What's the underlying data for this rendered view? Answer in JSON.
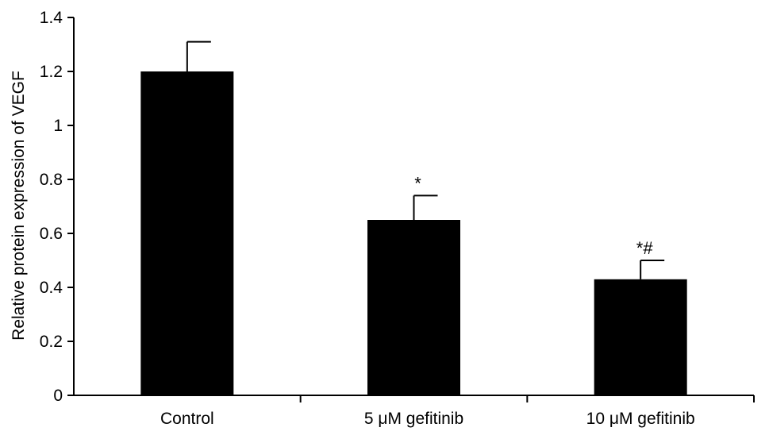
{
  "chart_data": {
    "type": "bar",
    "title": "",
    "xlabel": "",
    "ylabel": "Relative protein expression of VEGF",
    "categories": [
      "Control",
      "5 μM gefitinib",
      "10 μM gefitinib"
    ],
    "values": [
      1.2,
      0.65,
      0.43
    ],
    "error_upper": [
      0.11,
      0.09,
      0.07
    ],
    "annotations": [
      "",
      "*",
      "*#"
    ],
    "ylim": [
      0,
      1.4
    ],
    "yticks": [
      0,
      0.2,
      0.4,
      0.6,
      0.8,
      1,
      1.2,
      1.4
    ],
    "ytick_labels": [
      "0",
      "0.2",
      "0.4",
      "0.6",
      "0.8",
      "1",
      "1.2",
      "1.4"
    ],
    "bar_color": "#000000",
    "grid": false,
    "legend": "none"
  }
}
